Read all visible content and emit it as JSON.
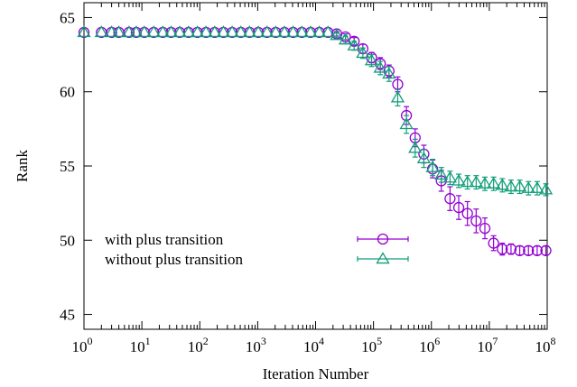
{
  "chart_data": {
    "type": "scatter",
    "xlabel": "Iteration Number",
    "ylabel": "Rank",
    "xscale": "log",
    "xlim": [
      1,
      100000000
    ],
    "ylim": [
      44,
      66
    ],
    "grid": false,
    "legend_position": "center-left",
    "x_ticks": [
      {
        "value": 1,
        "base": "10",
        "exp": "0"
      },
      {
        "value": 10,
        "base": "10",
        "exp": "1"
      },
      {
        "value": 100,
        "base": "10",
        "exp": "2"
      },
      {
        "value": 1000,
        "base": "10",
        "exp": "3"
      },
      {
        "value": 10000,
        "base": "10",
        "exp": "4"
      },
      {
        "value": 100000,
        "base": "10",
        "exp": "5"
      },
      {
        "value": 1000000,
        "base": "10",
        "exp": "6"
      },
      {
        "value": 10000000,
        "base": "10",
        "exp": "7"
      },
      {
        "value": 100000000,
        "base": "10",
        "exp": "8"
      }
    ],
    "y_ticks": [
      {
        "value": 45,
        "label": "45"
      },
      {
        "value": 50,
        "label": "50"
      },
      {
        "value": 55,
        "label": "55"
      },
      {
        "value": 60,
        "label": "60"
      },
      {
        "value": 65,
        "label": "65"
      }
    ],
    "series": [
      {
        "name": "with plus transition",
        "marker": "circle",
        "color": "#9400d3",
        "x": [
          1,
          2,
          3,
          4,
          6,
          8,
          11,
          16,
          23,
          32,
          45,
          64,
          91,
          128,
          181,
          256,
          362,
          512,
          724,
          1024,
          1448,
          2048,
          2896,
          4096,
          5793,
          8192,
          11585,
          16384,
          23170,
          32768,
          46341,
          65536,
          92682,
          131072,
          185364,
          262144,
          370728,
          524288,
          741455,
          1048576,
          1482910,
          2097152,
          2965821,
          4194304,
          5931642,
          8388608,
          11863283,
          16777216,
          23726566,
          33554432,
          47453133,
          67108864,
          94906266
        ],
        "y": [
          64,
          64,
          64,
          64,
          64,
          64,
          64,
          64,
          64,
          64,
          64,
          64,
          64,
          64,
          64,
          64,
          64,
          64,
          64,
          64,
          64,
          64,
          64,
          64,
          64,
          64,
          64,
          64,
          63.9,
          63.7,
          63.4,
          62.9,
          62.3,
          61.9,
          61.4,
          60.5,
          58.4,
          56.9,
          55.8,
          54.8,
          54,
          52.8,
          52.2,
          51.8,
          51.3,
          50.8,
          49.8,
          49.4,
          49.4,
          49.3,
          49.3,
          49.3,
          49.3
        ],
        "err": [
          0,
          0,
          0,
          0,
          0,
          0,
          0,
          0,
          0,
          0,
          0,
          0,
          0,
          0,
          0,
          0,
          0,
          0,
          0,
          0,
          0,
          0,
          0,
          0,
          0,
          0,
          0,
          0,
          0.15,
          0.2,
          0.25,
          0.3,
          0.35,
          0.4,
          0.4,
          0.5,
          0.6,
          0.6,
          0.6,
          0.6,
          0.7,
          0.8,
          0.8,
          0.8,
          0.8,
          0.7,
          0.5,
          0.4,
          0.35,
          0.3,
          0.3,
          0.3,
          0.3
        ]
      },
      {
        "name": "without plus transition",
        "marker": "triangle",
        "color": "#109e79",
        "x": [
          1,
          2,
          3,
          4,
          6,
          8,
          11,
          16,
          23,
          32,
          45,
          64,
          91,
          128,
          181,
          256,
          362,
          512,
          724,
          1024,
          1448,
          2048,
          2896,
          4096,
          5793,
          8192,
          11585,
          16384,
          23170,
          32768,
          46341,
          65536,
          92682,
          131072,
          185364,
          262144,
          370728,
          524288,
          741455,
          1048576,
          1482910,
          2097152,
          2965821,
          4194304,
          5931642,
          8388608,
          11863283,
          16777216,
          23726566,
          33554432,
          47453133,
          67108864,
          94906266
        ],
        "y": [
          64,
          64,
          64,
          64,
          64,
          64,
          64,
          64,
          64,
          64,
          64,
          64,
          64,
          64,
          64,
          64,
          64,
          64,
          64,
          64,
          64,
          64,
          64,
          64,
          64,
          64,
          64,
          64,
          63.8,
          63.5,
          63.1,
          62.6,
          62.1,
          61.6,
          61.2,
          59.6,
          57.8,
          56.2,
          55.5,
          54.9,
          54.4,
          54.2,
          54,
          53.9,
          53.9,
          53.8,
          53.8,
          53.7,
          53.6,
          53.6,
          53.5,
          53.5,
          53.4
        ],
        "err": [
          0,
          0,
          0,
          0,
          0,
          0,
          0,
          0,
          0,
          0,
          0,
          0,
          0,
          0,
          0,
          0,
          0,
          0,
          0,
          0,
          0,
          0,
          0,
          0,
          0,
          0,
          0,
          0,
          0.15,
          0.25,
          0.3,
          0.35,
          0.4,
          0.45,
          0.5,
          0.55,
          0.6,
          0.6,
          0.6,
          0.55,
          0.5,
          0.45,
          0.45,
          0.45,
          0.45,
          0.45,
          0.45,
          0.45,
          0.45,
          0.45,
          0.45,
          0.45,
          0.4
        ]
      }
    ]
  }
}
